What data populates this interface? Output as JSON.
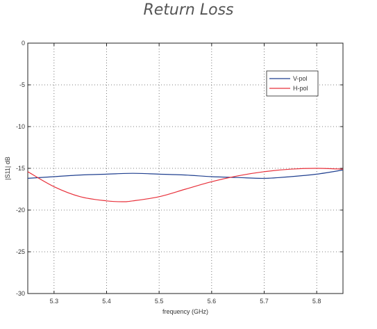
{
  "chart_data": {
    "type": "line",
    "title": "Return Loss",
    "xlabel": "frequency (GHz)",
    "ylabel": "|S11| dB",
    "xlim": [
      5.25,
      5.85
    ],
    "ylim": [
      -30,
      0
    ],
    "xticks": [
      5.3,
      5.4,
      5.5,
      5.6,
      5.7,
      5.8
    ],
    "yticks": [
      0,
      -5,
      -10,
      -15,
      -20,
      -25,
      -30
    ],
    "xtick_labels": [
      "5.3",
      "5.4",
      "5.5",
      "5.6",
      "5.7",
      "5.8"
    ],
    "ytick_labels": [
      "0",
      "-5",
      "-10",
      "-15",
      "-20",
      "-25",
      "-30"
    ],
    "grid": true,
    "legend_position": "top-right",
    "series": [
      {
        "name": "V-pol",
        "color": "#1f3f8f",
        "x": [
          5.25,
          5.3,
          5.35,
          5.4,
          5.45,
          5.5,
          5.55,
          5.6,
          5.65,
          5.7,
          5.75,
          5.8,
          5.85
        ],
        "y": [
          -16.2,
          -16.0,
          -15.8,
          -15.7,
          -15.6,
          -15.7,
          -15.8,
          -16.0,
          -16.1,
          -16.2,
          -16.0,
          -15.7,
          -15.2
        ]
      },
      {
        "name": "H-pol",
        "color": "#e8303a",
        "x": [
          5.25,
          5.3,
          5.35,
          5.4,
          5.43,
          5.45,
          5.5,
          5.55,
          5.6,
          5.65,
          5.7,
          5.75,
          5.8,
          5.85
        ],
        "y": [
          -15.4,
          -17.2,
          -18.4,
          -18.9,
          -19.0,
          -18.9,
          -18.4,
          -17.5,
          -16.6,
          -15.9,
          -15.4,
          -15.1,
          -15.0,
          -15.1
        ]
      }
    ]
  }
}
